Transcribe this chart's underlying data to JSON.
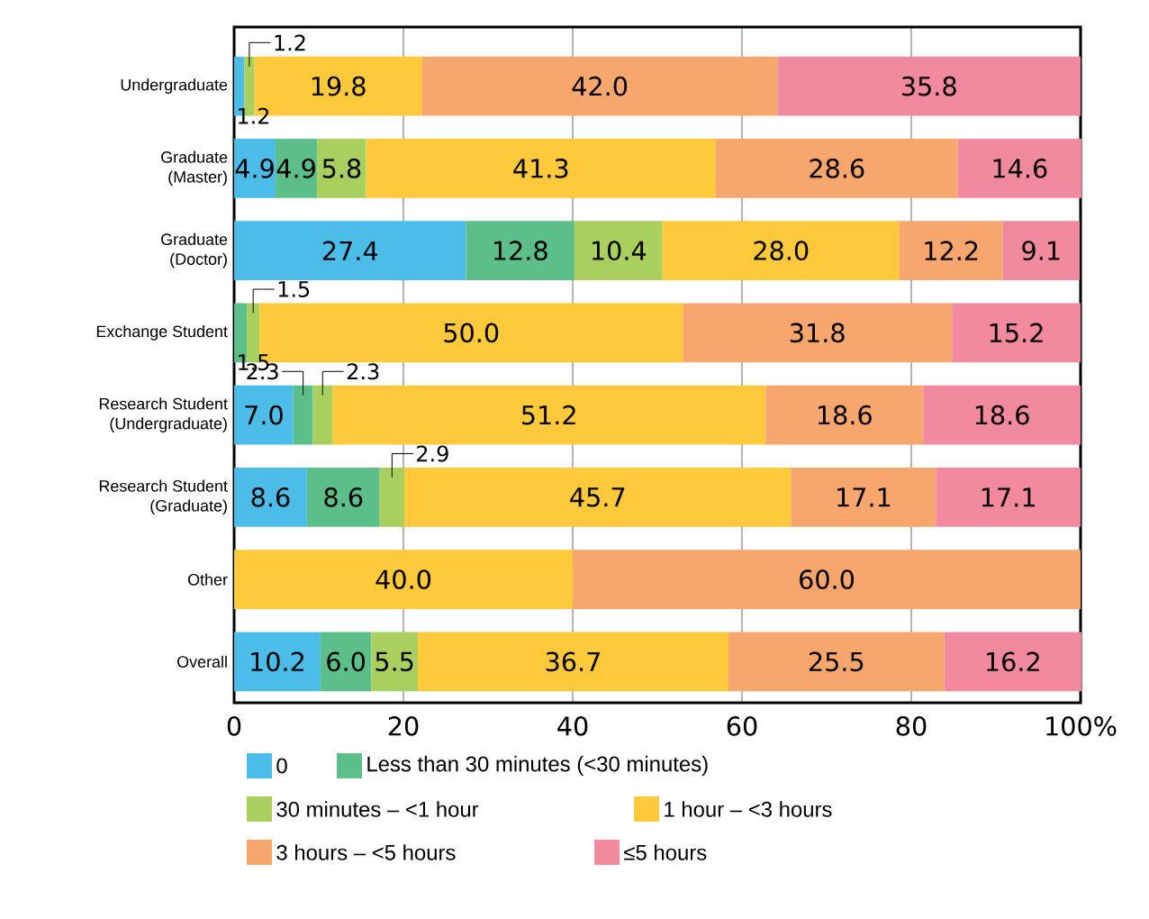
{
  "chart_data": {
    "type": "bar",
    "orientation": "horizontal",
    "stacked": true,
    "grid": "x",
    "legend": "bottom",
    "categories": [
      "Undergraduate",
      "Graduate\n(Master)",
      "Graduate\n(Doctor)",
      "Exchange Student",
      "Research Student\n(Undergraduate)",
      "Research Student\n(Graduate)",
      "Other",
      "Overall"
    ],
    "xlim": [
      0,
      100
    ],
    "xticks": [
      0,
      20,
      40,
      60,
      80,
      {
        "value": 100,
        "label": "100%"
      }
    ],
    "series": [
      {
        "name": "0",
        "color": "#4bbde8",
        "values": [
          1.2,
          4.9,
          27.4,
          null,
          7.0,
          8.6,
          null,
          10.2
        ],
        "value_labels": [
          "1.2",
          "4.9",
          "27.4",
          null,
          "7.0",
          "8.6",
          null,
          "10.2"
        ]
      },
      {
        "name": "Less than 30 minutes (<30 minutes)",
        "color": "#5cbf8a",
        "values": [
          null,
          4.9,
          12.8,
          1.5,
          2.3,
          8.6,
          null,
          6.0
        ],
        "value_labels": [
          null,
          "4.9",
          "12.8",
          "1.5",
          "2.3",
          "8.6",
          null,
          "6.0"
        ]
      },
      {
        "name": "30 minutes – <1 hour",
        "color": "#a9d05f",
        "values": [
          1.2,
          5.8,
          10.4,
          1.5,
          2.3,
          2.9,
          null,
          5.5
        ],
        "value_labels": [
          "1.2",
          "5.8",
          "10.4",
          "1.5",
          "2.3",
          "2.9",
          null,
          "5.5"
        ]
      },
      {
        "name": "1 hour – <3 hours",
        "color": "#fec93a",
        "values": [
          19.8,
          41.3,
          28.0,
          50.0,
          51.2,
          45.7,
          40.0,
          36.7
        ],
        "value_labels": [
          "19.8",
          "41.3",
          "28.0",
          "50.0",
          "51.2",
          "45.7",
          "40.0",
          "36.7"
        ]
      },
      {
        "name": "3 hours – <5 hours",
        "color": "#f7a66e",
        "values": [
          42.0,
          28.6,
          12.2,
          31.8,
          18.6,
          17.1,
          60.0,
          25.5
        ],
        "value_labels": [
          "42.0",
          "28.6",
          "12.2",
          "31.8",
          "18.6",
          "17.1",
          "60.0",
          "25.5"
        ]
      },
      {
        "name": "≤5 hours",
        "color": "#f18a9e",
        "values": [
          35.8,
          14.6,
          9.1,
          15.2,
          18.6,
          17.1,
          null,
          16.2
        ],
        "value_labels": [
          "35.8",
          "14.6",
          "9.1",
          "15.2",
          "18.6",
          "17.1",
          null,
          "16.2"
        ]
      }
    ]
  }
}
